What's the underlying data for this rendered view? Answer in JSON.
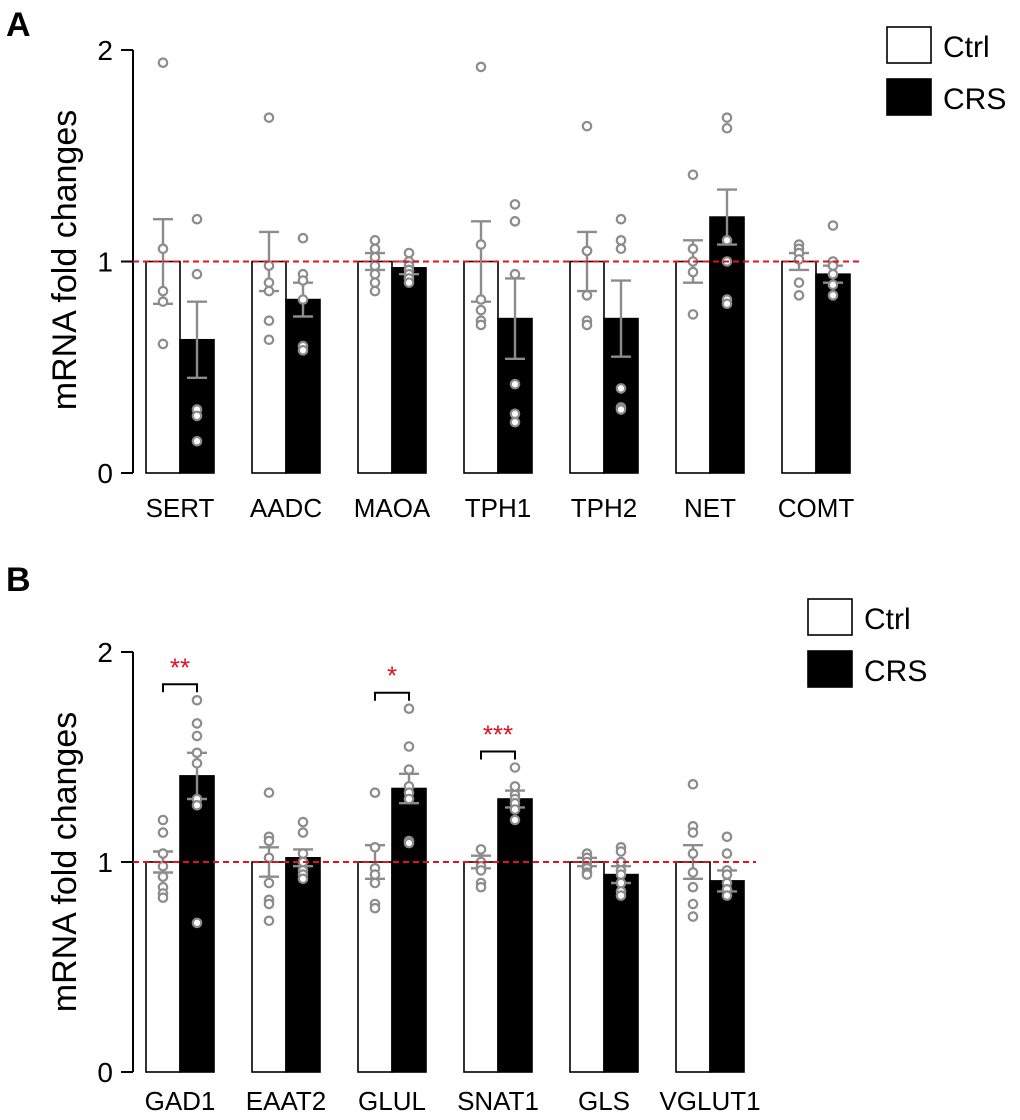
{
  "chart_data": [
    {
      "type": "bar",
      "panel": "A",
      "ylabel": "mRNA fold changes",
      "ylim": [
        0,
        2
      ],
      "yticks": [
        0,
        1,
        2
      ],
      "reference_line": 1,
      "legend": [
        {
          "label": "Ctrl",
          "color": "#ffffff"
        },
        {
          "label": "CRS",
          "color": "#000000"
        }
      ],
      "legend_position": "top-right",
      "categories": [
        "SERT",
        "AADC",
        "MAOA",
        "TPH1",
        "TPH2",
        "NET",
        "COMT"
      ],
      "series": [
        {
          "name": "Ctrl",
          "color": "#ffffff",
          "values": [
            1.0,
            1.0,
            1.0,
            1.0,
            1.0,
            1.0,
            1.0
          ],
          "sem": [
            0.2,
            0.14,
            0.04,
            0.19,
            0.14,
            0.1,
            0.04
          ],
          "points": [
            [
              1.94,
              1.06,
              0.86,
              0.81,
              0.61
            ],
            [
              1.68,
              0.98,
              0.9,
              0.86,
              0.72,
              0.63
            ],
            [
              1.1,
              1.06,
              1.02,
              0.98,
              0.94,
              0.9,
              0.86
            ],
            [
              1.92,
              1.08,
              0.82,
              0.77,
              0.72,
              0.7
            ],
            [
              1.64,
              1.05,
              1.05,
              0.84,
              0.72,
              0.7
            ],
            [
              1.41,
              1.06,
              1.0,
              0.95,
              0.75
            ],
            [
              1.08,
              1.06,
              1.04,
              1.01,
              0.9,
              0.84
            ]
          ]
        },
        {
          "name": "CRS",
          "color": "#000000",
          "values": [
            0.63,
            0.82,
            0.97,
            0.73,
            0.73,
            1.21,
            0.94
          ],
          "sem": [
            0.18,
            0.08,
            0.03,
            0.19,
            0.18,
            0.13,
            0.04
          ],
          "points": [
            [
              1.2,
              0.94,
              0.3,
              0.27,
              0.15
            ],
            [
              1.11,
              0.94,
              0.91,
              0.82,
              0.6,
              0.58
            ],
            [
              1.04,
              1.0,
              0.98,
              0.96,
              0.94,
              0.92,
              0.9
            ],
            [
              1.27,
              1.19,
              0.94,
              0.42,
              0.28,
              0.24
            ],
            [
              1.2,
              1.1,
              1.06,
              0.4,
              0.31,
              0.3
            ],
            [
              1.68,
              1.63,
              1.1,
              1.0,
              0.82,
              0.8
            ],
            [
              1.17,
              1.0,
              0.98,
              0.94,
              0.89,
              0.84
            ]
          ]
        }
      ],
      "significance": []
    },
    {
      "type": "bar",
      "panel": "B",
      "ylabel": "mRNA fold changes",
      "ylim": [
        0,
        2
      ],
      "yticks": [
        0,
        1,
        2
      ],
      "reference_line": 1,
      "legend": [
        {
          "label": "Ctrl",
          "color": "#ffffff"
        },
        {
          "label": "CRS",
          "color": "#000000"
        }
      ],
      "legend_position": "top-right",
      "categories": [
        "GAD1",
        "EAAT2",
        "GLUL",
        "SNAT1",
        "GLS",
        "VGLUT1"
      ],
      "series": [
        {
          "name": "Ctrl",
          "color": "#ffffff",
          "values": [
            1.0,
            1.0,
            1.0,
            1.0,
            1.0,
            1.0
          ],
          "sem": [
            0.05,
            0.07,
            0.08,
            0.03,
            0.02,
            0.08
          ],
          "points": [
            [
              1.2,
              1.14,
              1.04,
              0.98,
              0.93,
              0.88,
              0.85,
              0.83
            ],
            [
              1.33,
              1.12,
              1.1,
              1.02,
              0.9,
              0.82,
              0.8,
              0.72
            ],
            [
              1.33,
              1.07,
              0.97,
              0.94,
              0.9,
              0.8,
              0.78
            ],
            [
              1.06,
              1.0,
              0.98,
              0.96,
              0.9,
              0.88
            ],
            [
              1.04,
              1.02,
              1.0,
              0.98,
              0.97,
              0.95,
              0.94
            ],
            [
              1.37,
              1.17,
              1.14,
              1.04,
              0.95,
              0.88,
              0.8,
              0.74
            ]
          ]
        },
        {
          "name": "CRS",
          "color": "#000000",
          "values": [
            1.41,
            1.02,
            1.35,
            1.3,
            0.94,
            0.91
          ],
          "sem": [
            0.11,
            0.04,
            0.07,
            0.04,
            0.04,
            0.05
          ],
          "points": [
            [
              1.77,
              1.66,
              1.6,
              1.52,
              1.47,
              1.3,
              1.27,
              0.71
            ],
            [
              1.19,
              1.14,
              1.04,
              1.0,
              0.96,
              0.94,
              0.92
            ],
            [
              1.73,
              1.55,
              1.44,
              1.36,
              1.33,
              1.3,
              1.1,
              1.09
            ],
            [
              1.45,
              1.36,
              1.32,
              1.3,
              1.28,
              1.25,
              1.2
            ],
            [
              1.07,
              1.05,
              1.0,
              0.96,
              0.94,
              0.9,
              0.86,
              0.84
            ],
            [
              1.12,
              1.04,
              0.96,
              0.94,
              0.9,
              0.87,
              0.84
            ]
          ]
        }
      ],
      "significance": [
        {
          "category": "GAD1",
          "label": "**"
        },
        {
          "category": "GLUL",
          "label": "*"
        },
        {
          "category": "SNAT1",
          "label": "***"
        }
      ]
    }
  ]
}
